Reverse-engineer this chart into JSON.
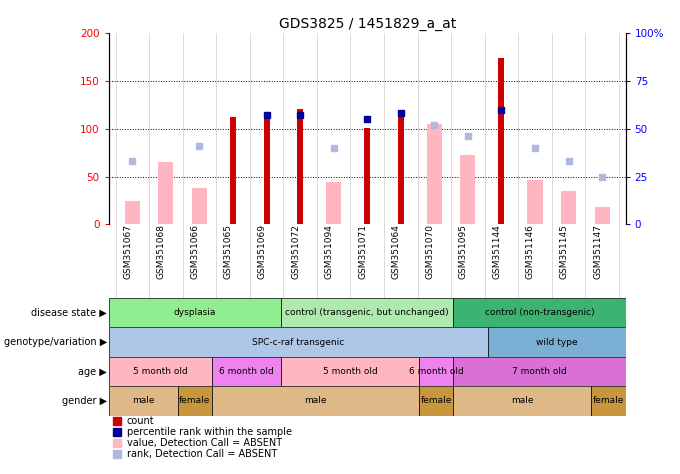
{
  "title": "GDS3825 / 1451829_a_at",
  "samples": [
    "GSM351067",
    "GSM351068",
    "GSM351066",
    "GSM351065",
    "GSM351069",
    "GSM351072",
    "GSM351094",
    "GSM351071",
    "GSM351064",
    "GSM351070",
    "GSM351095",
    "GSM351144",
    "GSM351146",
    "GSM351145",
    "GSM351147"
  ],
  "count_values": [
    0,
    0,
    0,
    112,
    117,
    121,
    0,
    101,
    115,
    0,
    0,
    174,
    0,
    0,
    0
  ],
  "percentile_values": [
    0,
    0,
    0,
    0,
    57,
    57,
    0,
    55,
    58,
    0,
    0,
    60,
    0,
    0,
    0
  ],
  "absent_value_values": [
    25,
    65,
    38,
    0,
    0,
    0,
    44,
    0,
    0,
    105,
    73,
    0,
    46,
    35,
    18
  ],
  "absent_rank_values": [
    33,
    0,
    41,
    0,
    0,
    0,
    40,
    0,
    0,
    52,
    46,
    0,
    40,
    33,
    25
  ],
  "ylim": [
    0,
    200
  ],
  "yticks_left": [
    0,
    50,
    100,
    150,
    200
  ],
  "yticks_right": [
    0,
    25,
    50,
    75,
    100
  ],
  "disease_state": [
    {
      "label": "dysplasia",
      "start": 0,
      "end": 5,
      "color": "#90ee90"
    },
    {
      "label": "control (transgenic, but unchanged)",
      "start": 5,
      "end": 10,
      "color": "#aeeaae"
    },
    {
      "label": "control (non-transgenic)",
      "start": 10,
      "end": 15,
      "color": "#3cb371"
    }
  ],
  "genotype": [
    {
      "label": "SPC-c-raf transgenic",
      "start": 0,
      "end": 11,
      "color": "#aec6e8"
    },
    {
      "label": "wild type",
      "start": 11,
      "end": 15,
      "color": "#7bafd4"
    }
  ],
  "age": [
    {
      "label": "5 month old",
      "start": 0,
      "end": 3,
      "color": "#ffb6c1"
    },
    {
      "label": "6 month old",
      "start": 3,
      "end": 5,
      "color": "#ee82ee"
    },
    {
      "label": "5 month old",
      "start": 5,
      "end": 9,
      "color": "#ffb6c1"
    },
    {
      "label": "6 month old",
      "start": 9,
      "end": 10,
      "color": "#ee82ee"
    },
    {
      "label": "7 month old",
      "start": 10,
      "end": 15,
      "color": "#da70d6"
    }
  ],
  "gender": [
    {
      "label": "male",
      "start": 0,
      "end": 2,
      "color": "#deb887"
    },
    {
      "label": "female",
      "start": 2,
      "end": 3,
      "color": "#c8963c"
    },
    {
      "label": "male",
      "start": 3,
      "end": 9,
      "color": "#deb887"
    },
    {
      "label": "female",
      "start": 9,
      "end": 10,
      "color": "#c8963c"
    },
    {
      "label": "male",
      "start": 10,
      "end": 14,
      "color": "#deb887"
    },
    {
      "label": "female",
      "start": 14,
      "end": 15,
      "color": "#c8963c"
    }
  ],
  "count_color": "#cc0000",
  "percentile_color": "#000099",
  "absent_value_color": "#ffb6c1",
  "absent_rank_color": "#b0b8e0",
  "legend_items": [
    {
      "label": "count",
      "color": "#cc0000"
    },
    {
      "label": "percentile rank within the sample",
      "color": "#000099"
    },
    {
      "label": "value, Detection Call = ABSENT",
      "color": "#ffb6c1"
    },
    {
      "label": "rank, Detection Call = ABSENT",
      "color": "#b0b8e0"
    }
  ],
  "row_labels": {
    "disease_state": "disease state",
    "genotype": "genotype/variation",
    "age": "age",
    "gender": "gender"
  }
}
